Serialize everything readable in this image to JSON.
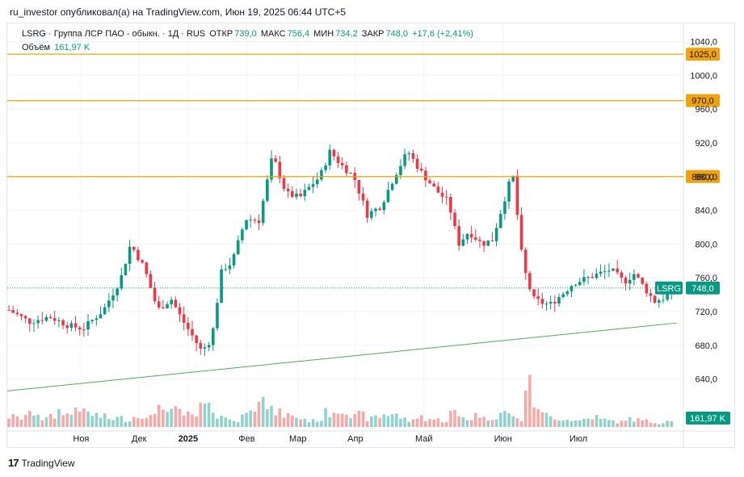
{
  "header": {
    "text": "ru_investor опубликовал(а) на TradingView.com, Июн 19, 2025 06:44 UTC+5"
  },
  "legend": {
    "ticker": "LSRG · Группа ЛСР ПАО - обыкн. · 1Д · RUS",
    "open_label": "ОТКР",
    "open_value": "739,0",
    "high_label": "МАКС",
    "high_value": "756,4",
    "low_label": "МИН",
    "low_value": "734,2",
    "close_label": "ЗАКР",
    "close_value": "748,0",
    "change": "+17,6 (+2,41%)",
    "volume_label": "Объём",
    "volume_value": "161,97 K"
  },
  "logo": {
    "mark": "17",
    "text": "TradingView"
  },
  "colors": {
    "up": "#089981",
    "down": "#f23645",
    "up_vol": "#92d2cc",
    "down_vol": "#f7a9a7",
    "level": "#f0a30a",
    "trend": "#4caf50",
    "grid": "#f0f3fa",
    "price": "#089981"
  },
  "chart_data": {
    "type": "candlestick",
    "symbol": "LSRG",
    "y_axis_ticks": [
      "1040,0",
      "1000,0",
      "960,0",
      "920,0",
      "880,0",
      "840,0",
      "800,0",
      "760,0",
      "720,0",
      "680,0",
      "640,0"
    ],
    "y_axis_values": [
      1040,
      1000,
      960,
      920,
      880,
      840,
      800,
      760,
      720,
      680,
      640
    ],
    "ylim": [
      612,
      1050
    ],
    "x_axis_labels": [
      "Ноя",
      "Дек",
      "2025",
      "Фев",
      "Мар",
      "Апр",
      "Май",
      "Июн",
      "Июл"
    ],
    "x_axis_positions": [
      0.14,
      0.25,
      0.343,
      0.454,
      0.551,
      0.66,
      0.79,
      0.94,
      1.083
    ],
    "horizontal_levels": [
      {
        "label": "1025,0",
        "value": 1025
      },
      {
        "label": "970,0",
        "value": 970
      },
      {
        "label": "880,0",
        "value": 880
      }
    ],
    "trendline": {
      "from": [
        0.0,
        626
      ],
      "to": [
        1.07,
        713
      ]
    },
    "last_price": {
      "label": "LSRG",
      "value_label": "748,0",
      "value": 748
    },
    "volume_badge": "161,97 K",
    "anchors": [
      [
        0,
        722
      ],
      [
        0.03,
        708
      ],
      [
        0.06,
        714
      ],
      [
        0.09,
        703
      ],
      [
        0.11,
        700
      ],
      [
        0.14,
        722
      ],
      [
        0.165,
        758
      ],
      [
        0.18,
        800
      ],
      [
        0.2,
        772
      ],
      [
        0.22,
        722
      ],
      [
        0.24,
        735
      ],
      [
        0.255,
        712
      ],
      [
        0.27,
        693
      ],
      [
        0.285,
        673
      ],
      [
        0.3,
        688
      ],
      [
        0.315,
        770
      ],
      [
        0.33,
        778
      ],
      [
        0.35,
        830
      ],
      [
        0.37,
        828
      ],
      [
        0.39,
        905
      ],
      [
        0.41,
        860
      ],
      [
        0.43,
        855
      ],
      [
        0.445,
        868
      ],
      [
        0.46,
        880
      ],
      [
        0.475,
        910
      ],
      [
        0.49,
        895
      ],
      [
        0.51,
        880
      ],
      [
        0.53,
        835
      ],
      [
        0.55,
        845
      ],
      [
        0.57,
        880
      ],
      [
        0.59,
        910
      ],
      [
        0.61,
        885
      ],
      [
        0.63,
        865
      ],
      [
        0.65,
        850
      ],
      [
        0.665,
        800
      ],
      [
        0.68,
        815
      ],
      [
        0.7,
        800
      ],
      [
        0.715,
        805
      ],
      [
        0.73,
        845
      ],
      [
        0.745,
        885
      ],
      [
        0.76,
        776
      ],
      [
        0.775,
        735
      ],
      [
        0.79,
        730
      ],
      [
        0.8,
        728
      ],
      [
        0.82,
        742
      ],
      [
        0.835,
        754
      ],
      [
        0.85,
        758
      ],
      [
        0.87,
        764
      ],
      [
        0.89,
        770
      ],
      [
        0.91,
        755
      ],
      [
        0.925,
        765
      ],
      [
        0.94,
        748
      ],
      [
        0.955,
        732
      ],
      [
        0.97,
        737
      ],
      [
        0.98,
        748
      ]
    ],
    "volume_profile": [
      0.25,
      0.22,
      0.3,
      0.35,
      0.2,
      0.25,
      0.4,
      0.3,
      0.5,
      0.35,
      0.3,
      0.25,
      0.2,
      0.22,
      0.18,
      0.25,
      0.3,
      0.25,
      0.6,
      0.35,
      0.4,
      0.3,
      0.25,
      0.5,
      0.45,
      0.3,
      0.2,
      0.15,
      0.3,
      0.55,
      0.9,
      0.4,
      0.35,
      0.3,
      0.25,
      0.2,
      0.15,
      0.18,
      0.35,
      0.4,
      0.45,
      0.25,
      0.3,
      0.2,
      0.25,
      0.3,
      0.35,
      0.2,
      0.15,
      0.25,
      0.2,
      0.18,
      0.15,
      0.35,
      0.25,
      0.2,
      0.3,
      0.2,
      0.25,
      0.35,
      0.3,
      0.18,
      1.0,
      0.55,
      0.3,
      0.25,
      0.2,
      0.18,
      0.15,
      0.2,
      0.25,
      0.18,
      0.15,
      0.12,
      0.2,
      0.18,
      0.15,
      0.12,
      0.1,
      0.2
    ]
  }
}
